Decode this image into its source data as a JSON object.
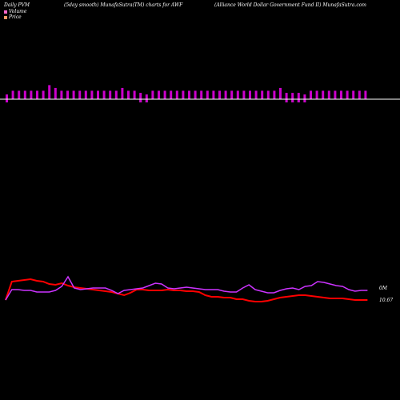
{
  "header": {
    "left": "Daily PVM",
    "middle": "(5day smooth) MunafaSutra(TM) charts for AWF",
    "right": "(Alliance  World Dollar Government Fund II) MunafaSutra.com"
  },
  "legend": {
    "volume_label": "Volume",
    "price_label": "Price",
    "volume_color": "#ff66cc",
    "price_color": "#ff9966"
  },
  "colors": {
    "volume_up": "#cc00cc",
    "volume_down": "#33dd33",
    "price_line": "#ff0000",
    "volume_line": "#cc33ff",
    "baseline": "#ffffff"
  },
  "chart_data": {
    "type": "line",
    "title": "",
    "right_labels": {
      "volume": "0M",
      "price": "10.67"
    },
    "volume_bars": [
      {
        "v": 3,
        "d": "down"
      },
      {
        "v": 3,
        "d": "up"
      },
      {
        "v": 3,
        "d": "up"
      },
      {
        "v": 3,
        "d": "up"
      },
      {
        "v": 3,
        "d": "up"
      },
      {
        "v": 3,
        "d": "up"
      },
      {
        "v": 3,
        "d": "up"
      },
      {
        "v": 5,
        "d": "up"
      },
      {
        "v": 4,
        "d": "up"
      },
      {
        "v": 3,
        "d": "up"
      },
      {
        "v": 3,
        "d": "up"
      },
      {
        "v": 3,
        "d": "up"
      },
      {
        "v": 3,
        "d": "up"
      },
      {
        "v": 3,
        "d": "up"
      },
      {
        "v": 3,
        "d": "up"
      },
      {
        "v": 3,
        "d": "up"
      },
      {
        "v": 3,
        "d": "up"
      },
      {
        "v": 3,
        "d": "up"
      },
      {
        "v": 3,
        "d": "up"
      },
      {
        "v": 4,
        "d": "up"
      },
      {
        "v": 3,
        "d": "up"
      },
      {
        "v": 3,
        "d": "up"
      },
      {
        "v": 4,
        "d": "down"
      },
      {
        "v": 3,
        "d": "down"
      },
      {
        "v": 3,
        "d": "up"
      },
      {
        "v": 3,
        "d": "up"
      },
      {
        "v": 3,
        "d": "up"
      },
      {
        "v": 3,
        "d": "up"
      },
      {
        "v": 3,
        "d": "up"
      },
      {
        "v": 3,
        "d": "up"
      },
      {
        "v": 3,
        "d": "up"
      },
      {
        "v": 3,
        "d": "up"
      },
      {
        "v": 3,
        "d": "up"
      },
      {
        "v": 3,
        "d": "up"
      },
      {
        "v": 3,
        "d": "up"
      },
      {
        "v": 3,
        "d": "up"
      },
      {
        "v": 3,
        "d": "up"
      },
      {
        "v": 3,
        "d": "up"
      },
      {
        "v": 3,
        "d": "up"
      },
      {
        "v": 3,
        "d": "up"
      },
      {
        "v": 3,
        "d": "up"
      },
      {
        "v": 3,
        "d": "up"
      },
      {
        "v": 3,
        "d": "up"
      },
      {
        "v": 3,
        "d": "up"
      },
      {
        "v": 3,
        "d": "up"
      },
      {
        "v": 4,
        "d": "up"
      },
      {
        "v": 4,
        "d": "down"
      },
      {
        "v": 4,
        "d": "down"
      },
      {
        "v": 4,
        "d": "down"
      },
      {
        "v": 3,
        "d": "down"
      },
      {
        "v": 3,
        "d": "up"
      },
      {
        "v": 3,
        "d": "up"
      },
      {
        "v": 3,
        "d": "up"
      },
      {
        "v": 3,
        "d": "up"
      },
      {
        "v": 3,
        "d": "up"
      },
      {
        "v": 3,
        "d": "up"
      },
      {
        "v": 3,
        "d": "up"
      },
      {
        "v": 3,
        "d": "up"
      },
      {
        "v": 3,
        "d": "up"
      },
      {
        "v": 3,
        "d": "up"
      }
    ],
    "volume_line": [
      375,
      362,
      362,
      363,
      363,
      365,
      365,
      365,
      363,
      358,
      346,
      360,
      362,
      361,
      360,
      360,
      360,
      363,
      367,
      363,
      362,
      361,
      360,
      357,
      354,
      355,
      360,
      361,
      360,
      359,
      360,
      361,
      362,
      362,
      362,
      364,
      365,
      365,
      360,
      356,
      362,
      364,
      366,
      366,
      363,
      361,
      360,
      362,
      358,
      357,
      352,
      353,
      355,
      357,
      358,
      362,
      364,
      363,
      363
    ],
    "price_line": [
      375,
      352,
      351,
      350,
      349,
      351,
      352,
      355,
      356,
      354,
      357,
      359,
      360,
      361,
      362,
      363,
      364,
      365,
      367,
      369,
      366,
      362,
      362,
      363,
      363,
      363,
      362,
      363,
      363,
      364,
      364,
      365,
      369,
      371,
      371,
      372,
      372,
      374,
      374,
      376,
      377,
      377,
      376,
      374,
      372,
      371,
      370,
      369,
      369,
      370,
      371,
      372,
      373,
      373,
      373,
      374,
      375,
      375,
      375
    ]
  }
}
